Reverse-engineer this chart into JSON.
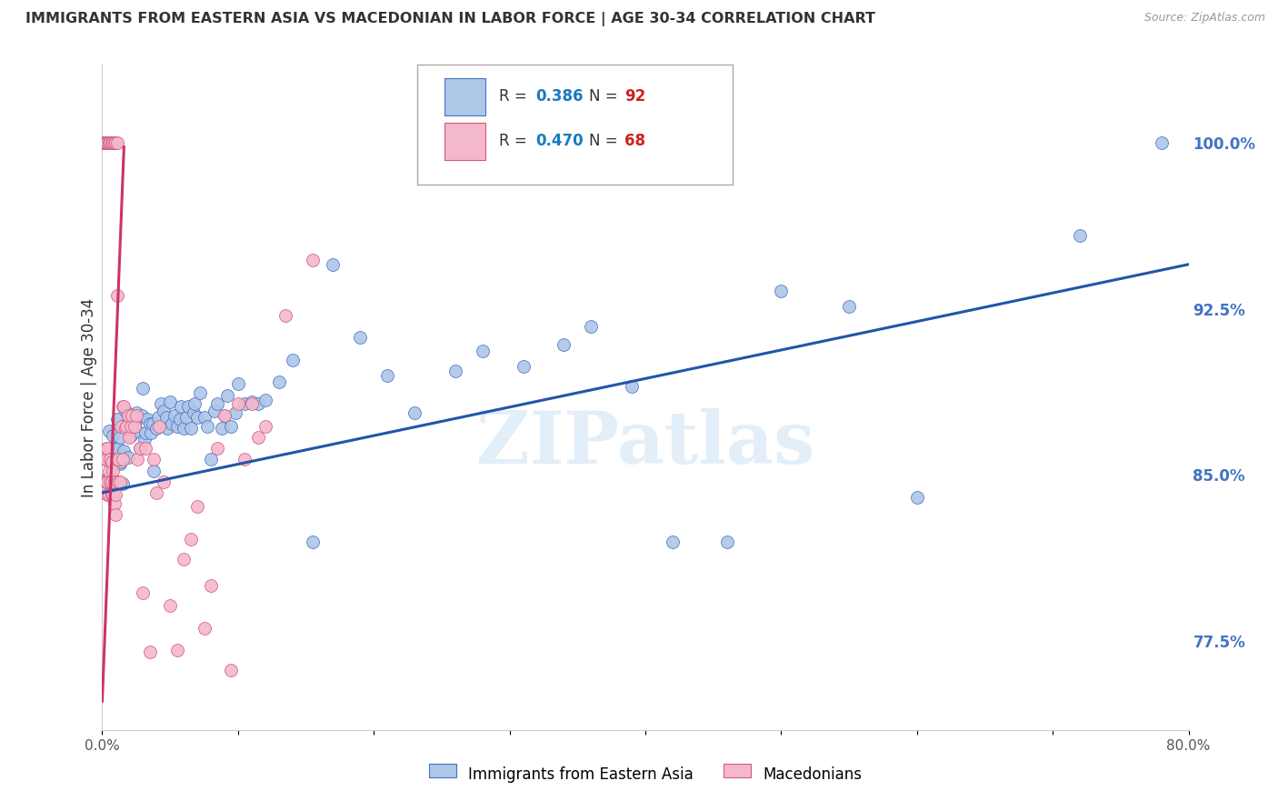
{
  "title": "IMMIGRANTS FROM EASTERN ASIA VS MACEDONIAN IN LABOR FORCE | AGE 30-34 CORRELATION CHART",
  "source": "Source: ZipAtlas.com",
  "ylabel": "In Labor Force | Age 30-34",
  "xlim": [
    0.0,
    0.8
  ],
  "ylim": [
    0.735,
    1.035
  ],
  "xticks": [
    0.0,
    0.1,
    0.2,
    0.3,
    0.4,
    0.5,
    0.6,
    0.7,
    0.8
  ],
  "xticklabels": [
    "0.0%",
    "",
    "",
    "",
    "",
    "",
    "",
    "",
    "80.0%"
  ],
  "yticks": [
    0.775,
    0.85,
    0.925,
    1.0
  ],
  "yticklabels": [
    "77.5%",
    "85.0%",
    "92.5%",
    "100.0%"
  ],
  "blue_R": 0.386,
  "blue_N": 92,
  "pink_R": 0.47,
  "pink_N": 68,
  "blue_color": "#aec6e8",
  "blue_edge_color": "#4472c4",
  "pink_color": "#f4b8cb",
  "pink_edge_color": "#d45a7a",
  "blue_line_color": "#2255aa",
  "pink_line_color": "#cc3366",
  "legend_R_color": "#1a7abf",
  "legend_N_color": "#cc2222",
  "watermark": "ZIPatlas",
  "grid_color": "#d0d8e8",
  "blue_scatter_x": [
    0.003,
    0.004,
    0.005,
    0.006,
    0.007,
    0.008,
    0.008,
    0.009,
    0.01,
    0.011,
    0.011,
    0.012,
    0.013,
    0.013,
    0.014,
    0.015,
    0.015,
    0.016,
    0.017,
    0.018,
    0.019,
    0.02,
    0.021,
    0.022,
    0.024,
    0.025,
    0.026,
    0.028,
    0.029,
    0.03,
    0.031,
    0.032,
    0.033,
    0.035,
    0.036,
    0.037,
    0.038,
    0.04,
    0.041,
    0.043,
    0.045,
    0.047,
    0.048,
    0.05,
    0.051,
    0.053,
    0.055,
    0.057,
    0.058,
    0.06,
    0.062,
    0.063,
    0.065,
    0.067,
    0.068,
    0.07,
    0.072,
    0.075,
    0.077,
    0.08,
    0.083,
    0.085,
    0.088,
    0.09,
    0.092,
    0.095,
    0.098,
    0.1,
    0.105,
    0.11,
    0.115,
    0.12,
    0.13,
    0.14,
    0.155,
    0.17,
    0.19,
    0.21,
    0.23,
    0.26,
    0.28,
    0.31,
    0.34,
    0.36,
    0.39,
    0.42,
    0.46,
    0.5,
    0.55,
    0.6,
    0.72,
    0.78
  ],
  "blue_scatter_y": [
    0.848,
    0.858,
    0.87,
    0.856,
    0.862,
    0.868,
    0.848,
    0.855,
    0.862,
    0.857,
    0.875,
    0.862,
    0.855,
    0.867,
    0.856,
    0.872,
    0.846,
    0.861,
    0.879,
    0.872,
    0.858,
    0.876,
    0.868,
    0.874,
    0.873,
    0.878,
    0.87,
    0.862,
    0.877,
    0.889,
    0.866,
    0.869,
    0.875,
    0.873,
    0.869,
    0.873,
    0.852,
    0.871,
    0.876,
    0.882,
    0.879,
    0.876,
    0.871,
    0.883,
    0.873,
    0.877,
    0.872,
    0.875,
    0.881,
    0.871,
    0.876,
    0.881,
    0.871,
    0.878,
    0.882,
    0.876,
    0.887,
    0.876,
    0.872,
    0.857,
    0.879,
    0.882,
    0.871,
    0.877,
    0.886,
    0.872,
    0.878,
    0.891,
    0.882,
    0.883,
    0.882,
    0.884,
    0.892,
    0.902,
    0.82,
    0.945,
    0.912,
    0.895,
    0.878,
    0.897,
    0.906,
    0.899,
    0.909,
    0.917,
    0.89,
    0.82,
    0.82,
    0.933,
    0.926,
    0.84,
    0.958,
    1.0
  ],
  "pink_scatter_x": [
    0.001,
    0.001,
    0.001,
    0.002,
    0.002,
    0.002,
    0.003,
    0.003,
    0.003,
    0.004,
    0.004,
    0.004,
    0.005,
    0.005,
    0.006,
    0.006,
    0.007,
    0.007,
    0.007,
    0.008,
    0.008,
    0.009,
    0.009,
    0.01,
    0.01,
    0.011,
    0.012,
    0.012,
    0.013,
    0.014,
    0.015,
    0.015,
    0.016,
    0.017,
    0.018,
    0.019,
    0.02,
    0.021,
    0.022,
    0.024,
    0.025,
    0.026,
    0.028,
    0.03,
    0.032,
    0.035,
    0.038,
    0.04,
    0.042,
    0.045,
    0.05,
    0.055,
    0.06,
    0.065,
    0.07,
    0.075,
    0.08,
    0.085,
    0.09,
    0.095,
    0.1,
    0.105,
    0.11,
    0.115,
    0.12,
    0.135,
    0.155
  ],
  "pink_scatter_y": [
    0.842,
    0.86,
    0.847,
    0.857,
    0.842,
    0.861,
    0.847,
    0.857,
    0.862,
    0.841,
    0.847,
    0.862,
    0.841,
    0.852,
    0.847,
    0.857,
    0.841,
    0.847,
    0.856,
    0.841,
    0.852,
    0.837,
    0.847,
    0.841,
    0.832,
    0.931,
    0.847,
    0.857,
    0.847,
    0.872,
    0.881,
    0.857,
    0.881,
    0.871,
    0.872,
    0.877,
    0.867,
    0.872,
    0.877,
    0.872,
    0.877,
    0.857,
    0.862,
    0.797,
    0.862,
    0.77,
    0.857,
    0.842,
    0.872,
    0.847,
    0.791,
    0.771,
    0.812,
    0.821,
    0.836,
    0.781,
    0.8,
    0.862,
    0.877,
    0.762,
    0.882,
    0.857,
    0.882,
    0.867,
    0.872,
    0.922,
    0.947
  ],
  "pink_top_x": [
    0.001,
    0.001,
    0.001,
    0.002,
    0.002,
    0.003,
    0.003,
    0.003,
    0.004,
    0.004,
    0.005,
    0.005,
    0.006,
    0.007,
    0.008,
    0.008,
    0.009,
    0.01,
    0.011
  ],
  "pink_top_y": [
    1.0,
    1.0,
    1.0,
    1.0,
    1.0,
    1.0,
    1.0,
    1.0,
    1.0,
    1.0,
    1.0,
    1.0,
    1.0,
    1.0,
    1.0,
    1.0,
    1.0,
    1.0,
    1.0
  ],
  "blue_line_x0": 0.0,
  "blue_line_x1": 0.8,
  "blue_line_y0": 0.842,
  "blue_line_y1": 0.945,
  "pink_line_x0": 0.0,
  "pink_line_x1": 0.016,
  "pink_line_y0": 0.748,
  "pink_line_y1": 0.998
}
